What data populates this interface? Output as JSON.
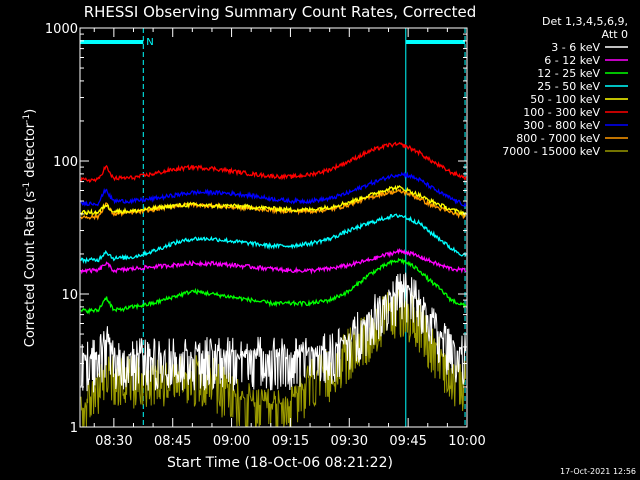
{
  "chart_data": {
    "type": "line",
    "title": "RHESSI Observing Summary Count Rates, Corrected",
    "xlabel": "Start Time (18-Oct-06 08:21:22)",
    "ylabel_main": "Corrected Count Rate (s",
    "ylabel_sup1": "-1",
    "ylabel_mid": " detector",
    "ylabel_sup2": "-1",
    "ylabel_end": ")",
    "yscale": "log",
    "ylim": [
      1,
      1000
    ],
    "xlim_minutes": [
      21.37,
      120
    ],
    "x_ticks": [
      {
        "label": "08:30",
        "minutes": 30
      },
      {
        "label": "08:45",
        "minutes": 45
      },
      {
        "label": "09:00",
        "minutes": 60
      },
      {
        "label": "09:15",
        "minutes": 75
      },
      {
        "label": "09:30",
        "minutes": 90
      },
      {
        "label": "09:45",
        "minutes": 105
      },
      {
        "label": "10:00",
        "minutes": 120
      }
    ],
    "y_ticks": [
      {
        "label": "1000",
        "value": 1000
      },
      {
        "label": "100",
        "value": 100
      },
      {
        "label": "10",
        "value": 10
      },
      {
        "label": "1",
        "value": 1
      }
    ],
    "legend_header_1": "Det 1,3,4,5,6,9,",
    "legend_header_2": "Att 0",
    "legend_position": "right",
    "flags": [
      {
        "label": "N",
        "start_minutes": 21.37,
        "end_minutes": 37.5
      },
      {
        "label": "",
        "start_minutes": 104.4,
        "end_minutes": 119.5
      }
    ],
    "vertical_lines_minutes": [
      {
        "minutes": 37.5,
        "color": "#00ffff",
        "style": "dashed"
      },
      {
        "minutes": 104.4,
        "color": "#00ffff",
        "style": "solid"
      },
      {
        "minutes": 119.5,
        "color": "#00ffff",
        "style": "dashed"
      }
    ],
    "x_minutes": [
      22,
      26,
      28,
      29,
      30,
      35,
      40,
      45,
      50,
      55,
      60,
      65,
      70,
      75,
      80,
      85,
      90,
      95,
      100,
      103,
      105,
      108,
      110,
      113,
      116,
      120
    ],
    "series": [
      {
        "name": "3 - 6 keV",
        "color": "#ffffff",
        "style": "noise-low",
        "values": [
          3.2,
          3.3,
          4.2,
          3.9,
          3.5,
          3.4,
          3.4,
          3.4,
          3.4,
          3.4,
          3.4,
          3.4,
          3.4,
          3.4,
          3.5,
          3.7,
          4.5,
          6.5,
          9.5,
          11,
          10.5,
          8.5,
          7,
          5,
          4,
          3.5
        ]
      },
      {
        "name": "6 - 12 keV",
        "color": "#ff00ff",
        "values": [
          15,
          15,
          17,
          16,
          15,
          15.5,
          16,
          16.5,
          17,
          17,
          16.5,
          16,
          15.5,
          15,
          15,
          15.5,
          16.5,
          18,
          20,
          21,
          20.5,
          19,
          18,
          16.5,
          15.5,
          15
        ]
      },
      {
        "name": "12 - 25 keV",
        "color": "#00ff00",
        "values": [
          7.5,
          7.5,
          9.5,
          8.5,
          7.5,
          8,
          8.5,
          9.5,
          10.5,
          10,
          9.5,
          9,
          8.5,
          8.5,
          8.5,
          9,
          10.5,
          14,
          17,
          18,
          17,
          15,
          13,
          11,
          9,
          8
        ]
      },
      {
        "name": "25 - 50 keV",
        "color": "#00ffff",
        "values": [
          18,
          18,
          21,
          19.5,
          18.5,
          19,
          21,
          24,
          26,
          26,
          25,
          24,
          23,
          23,
          24,
          26,
          30,
          34,
          38,
          39,
          37,
          34,
          30,
          26,
          22,
          19
        ]
      },
      {
        "name": "50 - 100 keV",
        "color": "#ffff00",
        "values": [
          41,
          41,
          47,
          44,
          42,
          42,
          44,
          46,
          47,
          46,
          46,
          45,
          44,
          43,
          43,
          45,
          49,
          55,
          62,
          63,
          60,
          55,
          51,
          47,
          43,
          40
        ]
      },
      {
        "name": "100 - 300 keV",
        "color": "#ff0000",
        "values": [
          72,
          72,
          92,
          80,
          74,
          75,
          80,
          86,
          90,
          88,
          84,
          80,
          77,
          76,
          79,
          86,
          100,
          118,
          132,
          133,
          127,
          115,
          104,
          92,
          82,
          74
        ]
      },
      {
        "name": "300 - 800 keV",
        "color": "#0000ff",
        "values": [
          48,
          48,
          62,
          54,
          50,
          50,
          52,
          55,
          58,
          58,
          57,
          55,
          52,
          50,
          50,
          52,
          58,
          67,
          76,
          80,
          78,
          72,
          66,
          58,
          52,
          46
        ]
      },
      {
        "name": "800 - 7000 keV",
        "color": "#ff9900",
        "values": [
          38,
          38,
          48,
          43,
          40,
          41,
          43,
          46,
          47,
          46,
          45,
          44,
          43,
          42,
          42,
          43,
          47,
          53,
          58,
          59,
          57,
          52,
          48,
          44,
          41,
          38
        ]
      },
      {
        "name": "7000 - 15000 keV",
        "color": "#999900",
        "style": "noise-low",
        "values": [
          1.3,
          2.2,
          2.8,
          2.6,
          2.5,
          2.5,
          2.6,
          2.6,
          2.6,
          2.5,
          1.8,
          1.5,
          1.4,
          1.5,
          2.3,
          2.8,
          4.0,
          5.5,
          7.5,
          8.5,
          8,
          6.5,
          5,
          3.5,
          2.7,
          2.2
        ]
      }
    ]
  },
  "footer_date": "17-Oct-2021 12:56"
}
